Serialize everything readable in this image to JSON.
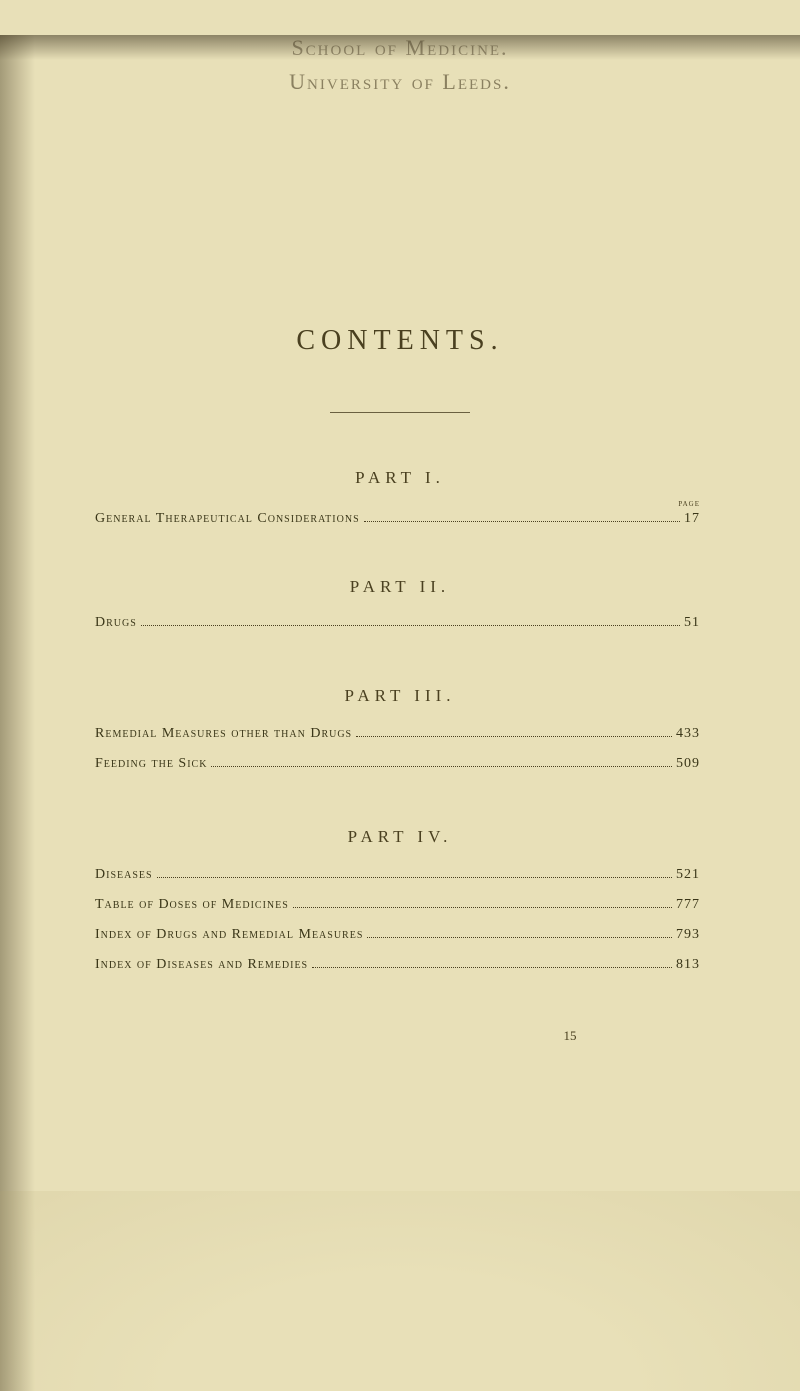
{
  "header": {
    "school": "School of Medicine.",
    "university": "University of Leeds."
  },
  "title": "CONTENTS.",
  "page_label": "page",
  "parts": [
    {
      "header": "PART I.",
      "entries": [
        {
          "title": "General Therapeutical Considerations",
          "page": "17"
        }
      ]
    },
    {
      "header": "PART II.",
      "entries": [
        {
          "title": "Drugs",
          "page": "51"
        }
      ]
    },
    {
      "header": "PART III.",
      "entries": [
        {
          "title": "Remedial Measures other than Drugs",
          "page": "433"
        },
        {
          "title": "Feeding the Sick",
          "page": "509"
        }
      ]
    },
    {
      "header": "PART IV.",
      "entries": [
        {
          "title": "Diseases",
          "page": "521"
        },
        {
          "title": "Table of Doses of Medicines",
          "page": "777"
        },
        {
          "title": "Index of Drugs and Remedial Measures",
          "page": "793"
        },
        {
          "title": "Index of Diseases and Remedies",
          "page": "813"
        }
      ]
    }
  ],
  "page_number": "15",
  "colors": {
    "background": "#e8e0b8",
    "text_main": "#3a3618",
    "text_faded": "#9a9070",
    "text_header": "#4a4020"
  }
}
